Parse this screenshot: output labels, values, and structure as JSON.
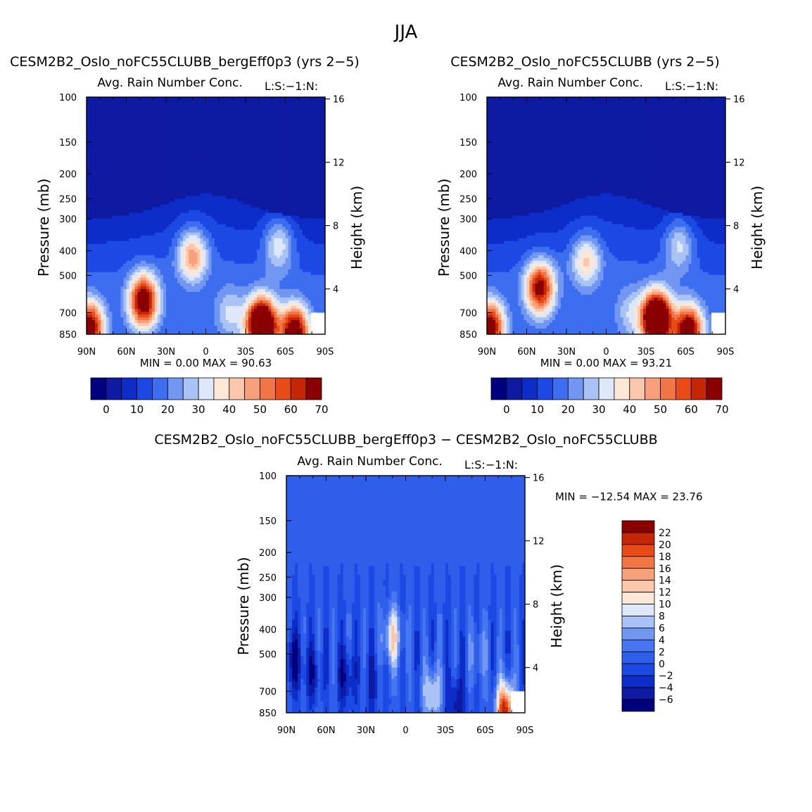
{
  "figure_title": "JJA",
  "chart_data": [
    {
      "type": "heatmap",
      "title": "CESM2B2_Oslo_noFC55CLUBB_bergEff0p3 (yrs 2−5)",
      "subtitle": "Avg. Rain Number Conc.",
      "corner_label": "L:S:−1:N:",
      "xlabel": "",
      "ylabel": "Pressure (mb)",
      "ylabel_right": "Height (km)",
      "x_ticks": [
        "90N",
        "60N",
        "30N",
        "0",
        "30S",
        "60S",
        "90S"
      ],
      "y_ticks": [
        "100",
        "150",
        "200",
        "250",
        "300",
        "400",
        "500",
        "700",
        "850"
      ],
      "y_ticks_right": [
        "16",
        "12",
        "8",
        "4"
      ],
      "stats": {
        "min_label": "MIN =",
        "min": "0.00",
        "max_label": "MAX =",
        "max": "90.63"
      },
      "colorbar": {
        "orientation": "horizontal",
        "labels": [
          "0",
          "10",
          "20",
          "30",
          "40",
          "50",
          "60",
          "70"
        ]
      },
      "blobs": [
        {
          "lat": -47,
          "p": 630,
          "peak": 62
        },
        {
          "lat": -10,
          "p": 420,
          "peak": 34
        },
        {
          "lat": 42,
          "p": 780,
          "peak": 88
        },
        {
          "lat": 67,
          "p": 830,
          "peak": 62
        },
        {
          "lat": -88,
          "p": 800,
          "peak": 60
        },
        {
          "lat": 55,
          "p": 380,
          "peak": 22
        },
        {
          "lat": 18,
          "p": 700,
          "peak": 16
        }
      ]
    },
    {
      "type": "heatmap",
      "title": "CESM2B2_Oslo_noFC55CLUBB (yrs 2−5)",
      "subtitle": "Avg. Rain Number Conc.",
      "corner_label": "L:S:−1:N:",
      "xlabel": "",
      "ylabel": "Pressure (mb)",
      "ylabel_right": "Height (km)",
      "x_ticks": [
        "90N",
        "60N",
        "30N",
        "0",
        "30S",
        "60S",
        "90S"
      ],
      "y_ticks": [
        "100",
        "150",
        "200",
        "250",
        "300",
        "400",
        "500",
        "700",
        "850"
      ],
      "y_ticks_right": [
        "16",
        "12",
        "8",
        "4"
      ],
      "stats": {
        "min_label": "MIN =",
        "min": "0.00",
        "max_label": "MAX =",
        "max": "93.21"
      },
      "colorbar": {
        "orientation": "horizontal",
        "labels": [
          "0",
          "10",
          "20",
          "30",
          "40",
          "50",
          "60",
          "70"
        ]
      },
      "blobs": [
        {
          "lat": -50,
          "p": 560,
          "peak": 55
        },
        {
          "lat": -15,
          "p": 440,
          "peak": 26
        },
        {
          "lat": 38,
          "p": 740,
          "peak": 90
        },
        {
          "lat": 62,
          "p": 830,
          "peak": 64
        },
        {
          "lat": -88,
          "p": 800,
          "peak": 60
        },
        {
          "lat": 55,
          "p": 380,
          "peak": 20
        },
        {
          "lat": 18,
          "p": 700,
          "peak": 14
        }
      ]
    },
    {
      "type": "heatmap",
      "title": "CESM2B2_Oslo_noFC55CLUBB_bergEff0p3 − CESM2B2_Oslo_noFC55CLUBB",
      "subtitle": "Avg. Rain Number Conc.",
      "corner_label": "L:S:−1:N:",
      "xlabel": "",
      "ylabel": "Pressure (mb)",
      "ylabel_right": "Height (km)",
      "x_ticks": [
        "90N",
        "60N",
        "30N",
        "0",
        "30S",
        "60S",
        "90S"
      ],
      "y_ticks": [
        "100",
        "150",
        "200",
        "250",
        "300",
        "400",
        "500",
        "700",
        "850"
      ],
      "y_ticks_right": [
        "16",
        "12",
        "8",
        "4"
      ],
      "stats": {
        "min_label": "MIN =",
        "min": "−12.54",
        "max_label": "MAX =",
        "max": "23.76"
      },
      "colorbar": {
        "orientation": "vertical",
        "labels": [
          "22",
          "20",
          "18",
          "16",
          "14",
          "12",
          "10",
          "8",
          "6",
          "4",
          "2",
          "0",
          "−2",
          "−4",
          "−6"
        ]
      },
      "blobs": [
        {
          "lat": -10,
          "p": 430,
          "peak": 11
        },
        {
          "lat": 20,
          "p": 720,
          "peak": 9
        },
        {
          "lat": 75,
          "p": 840,
          "peak": 22
        },
        {
          "lat": -85,
          "p": 530,
          "peak": -7
        },
        {
          "lat": -70,
          "p": 600,
          "peak": -5
        },
        {
          "lat": -45,
          "p": 620,
          "peak": -6
        },
        {
          "lat": 38,
          "p": 780,
          "peak": -6
        },
        {
          "lat": -25,
          "p": 650,
          "peak": -4
        },
        {
          "lat": 55,
          "p": 500,
          "peak": 4
        }
      ]
    }
  ],
  "colors": {
    "main_levels": [
      "#00007f",
      "#0d1aa1",
      "#0c2dc7",
      "#1c49e3",
      "#3e6ef0",
      "#7197f2",
      "#a9c3f6",
      "#dde9fb",
      "#fde7d7",
      "#fcc7aa",
      "#f8a07b",
      "#f27645",
      "#e84b18",
      "#c52706",
      "#8a0000"
    ],
    "diff_levels": [
      "#00007f",
      "#0d1aa1",
      "#0c2dc7",
      "#1c49e3",
      "#2f5fea",
      "#4876f0",
      "#7197f2",
      "#a9c3f6",
      "#dde9fb",
      "#fde7d7",
      "#fcc7aa",
      "#f8a07b",
      "#f27645",
      "#e84b18",
      "#c52706",
      "#8a0000"
    ]
  }
}
